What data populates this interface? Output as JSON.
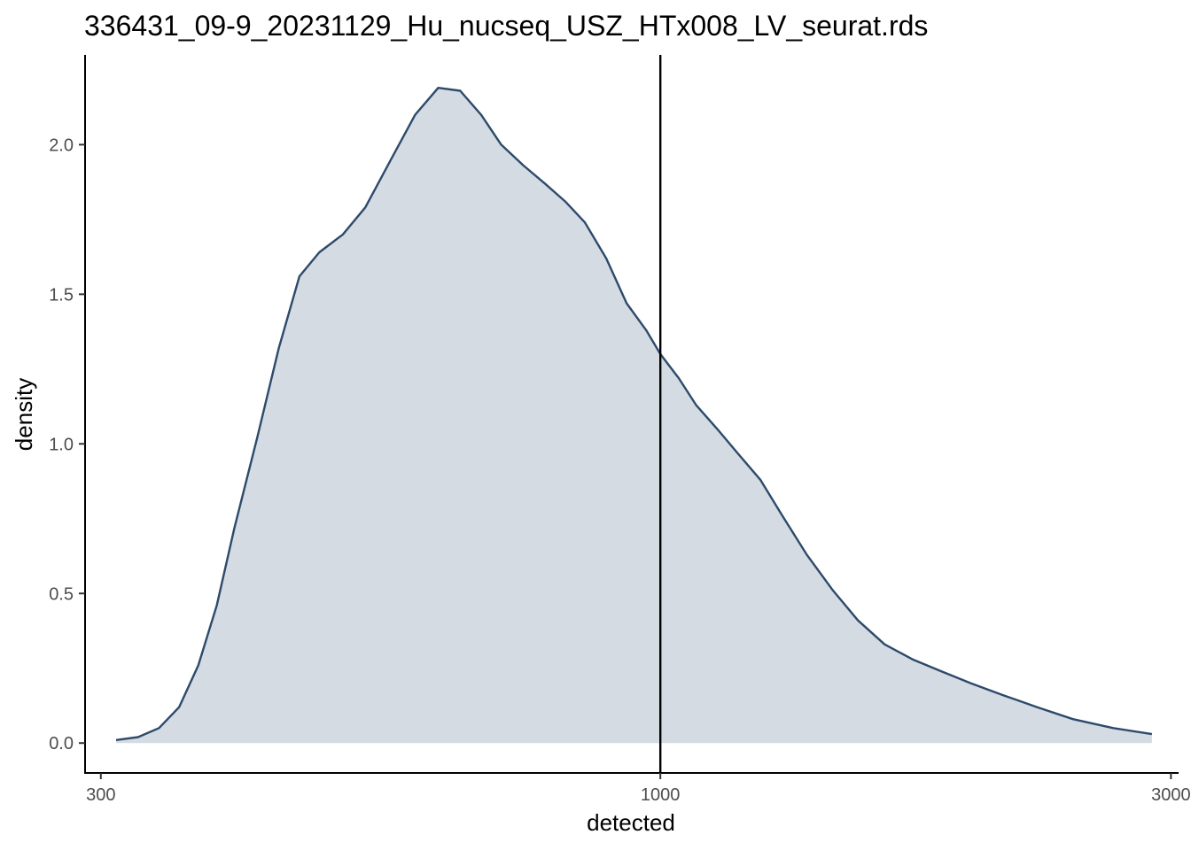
{
  "chart_data": {
    "type": "area",
    "title": "336431_09-9_20231129_Hu_nucseq_USZ_HTx008_LV_seurat.rds",
    "xlabel": "detected",
    "ylabel": "density",
    "x_scale": "log10",
    "xlim": [
      290,
      3050
    ],
    "ylim": [
      -0.1,
      2.3
    ],
    "x_ticks": [
      {
        "value": 300,
        "label": "300"
      },
      {
        "value": 1000,
        "label": "1000"
      },
      {
        "value": 3000,
        "label": "3000"
      }
    ],
    "y_ticks": [
      {
        "value": 0.0,
        "label": "0.0"
      },
      {
        "value": 0.5,
        "label": "0.5"
      },
      {
        "value": 1.0,
        "label": "1.0"
      },
      {
        "value": 1.5,
        "label": "1.5"
      },
      {
        "value": 2.0,
        "label": "2.0"
      }
    ],
    "vline": {
      "x": 1000,
      "color": "#000000"
    },
    "series": [
      {
        "line_color": "#2d4a6b",
        "fill_color": "#d4dbe2",
        "x": [
          310,
          325,
          340,
          355,
          370,
          385,
          400,
          420,
          440,
          460,
          480,
          505,
          530,
          560,
          590,
          620,
          650,
          680,
          710,
          745,
          780,
          815,
          850,
          890,
          930,
          970,
          1000,
          1040,
          1080,
          1130,
          1180,
          1240,
          1300,
          1370,
          1450,
          1530,
          1620,
          1720,
          1830,
          1950,
          2090,
          2250,
          2430,
          2650,
          2880
        ],
        "values": [
          0.01,
          0.02,
          0.05,
          0.12,
          0.26,
          0.46,
          0.72,
          1.02,
          1.32,
          1.56,
          1.64,
          1.7,
          1.79,
          1.95,
          2.1,
          2.19,
          2.18,
          2.1,
          2.0,
          1.93,
          1.87,
          1.81,
          1.74,
          1.62,
          1.47,
          1.38,
          1.3,
          1.22,
          1.13,
          1.05,
          0.97,
          0.88,
          0.76,
          0.63,
          0.51,
          0.41,
          0.33,
          0.28,
          0.24,
          0.2,
          0.16,
          0.12,
          0.08,
          0.05,
          0.03
        ]
      }
    ]
  }
}
